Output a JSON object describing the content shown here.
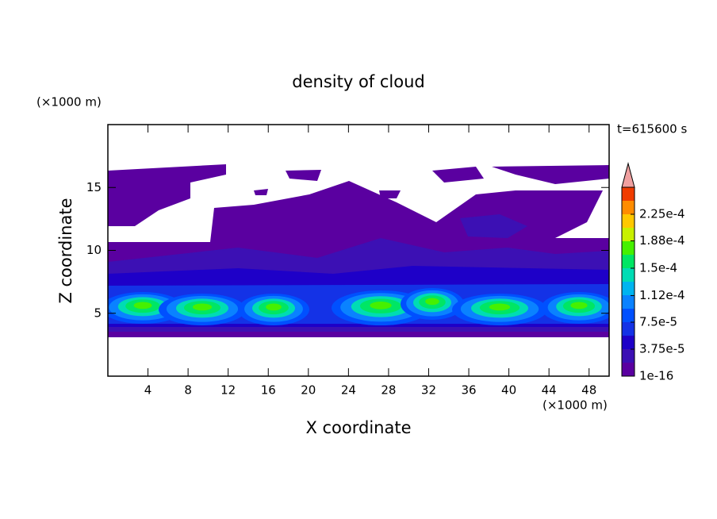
{
  "chart_data": {
    "type": "contour",
    "title": "density of cloud",
    "x_label": "X coordinate",
    "y_label": "Z coordinate",
    "x_unit": "(×1000 m)",
    "y_unit": "(×1000 m)",
    "time_label": "t=615600 s",
    "xlim": [
      0,
      50
    ],
    "xticks": [
      4,
      8,
      12,
      16,
      20,
      24,
      28,
      32,
      36,
      40,
      44,
      48
    ],
    "ylim": [
      0,
      20
    ],
    "yticks": [
      5,
      10,
      15
    ],
    "colorbar": {
      "clim": [
        0,
        0.0002625
      ],
      "ticks": [
        {
          "value": 1e-16,
          "label": "1e-16"
        },
        {
          "value": 3.75e-05,
          "label": "3.75e-5"
        },
        {
          "value": 7.5e-05,
          "label": "7.5e-5"
        },
        {
          "value": 0.000112,
          "label": "1.12e-4"
        },
        {
          "value": 0.00015,
          "label": "1.5e-4"
        },
        {
          "value": 0.000188,
          "label": "1.88e-4"
        },
        {
          "value": 0.000225,
          "label": "2.25e-4"
        }
      ],
      "colors": [
        "#5a00a0",
        "#3c10b4",
        "#1e00c8",
        "#1432e6",
        "#0050ff",
        "#0a82ff",
        "#00b4f0",
        "#00dcb4",
        "#00e664",
        "#46f000",
        "#c8f000",
        "#ffc800",
        "#ff8c00",
        "#f03c00"
      ],
      "extend_color": "#f0a0a0"
    }
  }
}
